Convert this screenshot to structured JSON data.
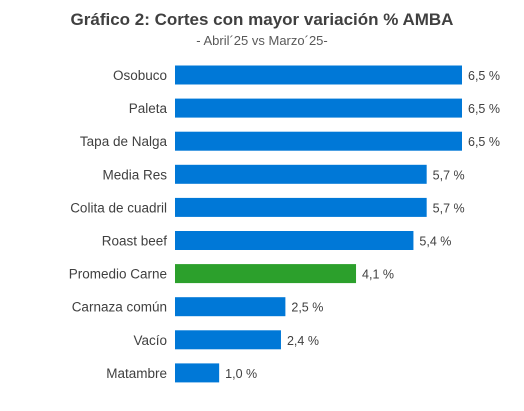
{
  "header": {
    "title": "Gráfico 2: Cortes con mayor variación % AMBA",
    "subtitle": "- Abril´25 vs Marzo´25-"
  },
  "colors": {
    "bar": "#0078D7",
    "highlight": "#2CA02C"
  },
  "chart_data": {
    "type": "bar",
    "orientation": "horizontal",
    "title": "Gráfico 2: Cortes con mayor variación % AMBA",
    "subtitle": "- Abril´25 vs Marzo´25-",
    "categories": [
      "Osobuco",
      "Paleta",
      "Tapa de Nalga",
      "Media Res",
      "Colita de cuadril",
      "Roast beef",
      "Promedio Carne",
      "Carnaza común",
      "Vacío",
      "Matambre"
    ],
    "values": [
      6.5,
      6.5,
      6.5,
      5.7,
      5.7,
      5.4,
      4.1,
      2.5,
      2.4,
      1.0
    ],
    "data_labels": [
      "6,5 %",
      "6,5 %",
      "6,5 %",
      "5,7 %",
      "5,7 %",
      "5,4 %",
      "4,1 %",
      "2,5 %",
      "2,4 %",
      "1,0 %"
    ],
    "highlight_category": "Promedio Carne",
    "xlim": [
      0,
      6.5
    ],
    "grid": false,
    "legend": "none",
    "xlabel": "",
    "ylabel": ""
  }
}
